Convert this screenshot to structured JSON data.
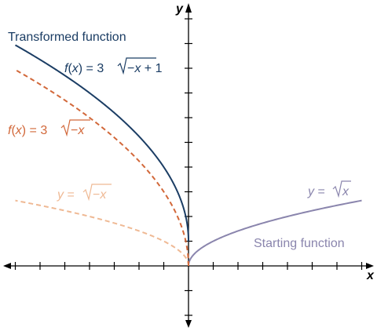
{
  "chart_data": {
    "type": "line",
    "title": "",
    "xlabel": "x",
    "ylabel": "y",
    "xlim": [
      -7,
      7
    ],
    "ylim": [
      -2.6,
      10
    ],
    "grid": false,
    "ticks": {
      "x_step": 1,
      "y_step": 1,
      "tick_labels": false
    },
    "series": [
      {
        "name": "y = √x",
        "color": "#8a85ad",
        "style": "solid",
        "x": [
          0,
          0.25,
          1,
          2,
          3,
          4,
          5,
          6,
          7
        ],
        "y": [
          0,
          0.5,
          1,
          1.414,
          1.732,
          2,
          2.236,
          2.449,
          2.646
        ]
      },
      {
        "name": "y = √−x",
        "color": "#efb994",
        "style": "dashed",
        "x": [
          -7,
          -6,
          -5,
          -4,
          -3,
          -2,
          -1,
          -0.25,
          0
        ],
        "y": [
          2.646,
          2.449,
          2.236,
          2,
          1.732,
          1.414,
          1,
          0.5,
          0
        ]
      },
      {
        "name": "f(x) = 3√−x",
        "color": "#d2683a",
        "style": "dashed",
        "x": [
          -7,
          -6,
          -5,
          -4,
          -3,
          -2,
          -1,
          -0.25,
          0
        ],
        "y": [
          7.937,
          7.348,
          6.708,
          6,
          5.196,
          4.243,
          3,
          1.5,
          0
        ]
      },
      {
        "name": "f(x) = 3√−x + 1",
        "color": "#1b3d64",
        "style": "solid",
        "x": [
          -7,
          -6,
          -5,
          -4,
          -3,
          -2,
          -1,
          -0.25,
          0
        ],
        "y": [
          8.937,
          8.348,
          7.708,
          7,
          6.196,
          5.243,
          4,
          2.5,
          1
        ]
      }
    ],
    "annotations": [
      {
        "text": "Transformed function",
        "color": "#1b3d64"
      },
      {
        "text": "Starting function",
        "color": "#8a85ad"
      }
    ]
  },
  "labels": {
    "transformed": "Transformed function",
    "starting": "Starting function",
    "f_plus": {
      "lhs": "f",
      "mid": "(",
      "x": "x",
      "rest": ") = 3",
      "rad": "−",
      "radx": "x",
      "tail": " + 1"
    },
    "f_3": {
      "lhs": "f",
      "mid": "(",
      "x": "x",
      "rest": ") = 3",
      "rad": "−",
      "radx": "x"
    },
    "y_negx": {
      "y": "y",
      "eq": " = ",
      "rad": "−",
      "radx": "x"
    },
    "y_x": {
      "y": "y",
      "eq": " = ",
      "radx": "x"
    }
  }
}
